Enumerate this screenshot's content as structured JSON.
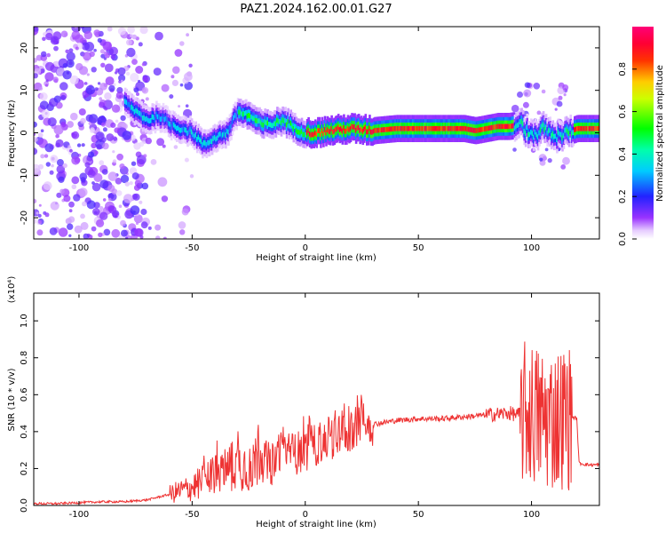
{
  "title": "PAZ1.2024.162.00.01.G27",
  "chart_data": [
    {
      "type": "heatmap",
      "xlabel": "Height of straight line (km)",
      "ylabel": "Frequency (Hz)",
      "xlim": [
        -120,
        130
      ],
      "ylim": [
        -25,
        25
      ],
      "xticks": [
        -100,
        -50,
        0,
        50,
        100
      ],
      "yticks": [
        -20,
        -10,
        0,
        10,
        20
      ],
      "colorbar": {
        "label": "Normalized spectral amplitude",
        "range": [
          0,
          1
        ],
        "ticks": [
          "0.0",
          "0.2",
          "0.4",
          "0.6",
          "0.8"
        ],
        "colormap": "purple-blue-cyan-green-yellow-red-pink"
      },
      "ridge": {
        "description": "dominant frequency ridge vs height",
        "x": [
          -120,
          -100,
          -90,
          -85,
          -80,
          -75,
          -70,
          -65,
          -60,
          -55,
          -50,
          -45,
          -40,
          -35,
          -30,
          -25,
          -20,
          -15,
          -10,
          -5,
          0,
          5,
          10,
          20,
          30,
          40,
          50,
          60,
          70,
          75,
          80,
          85,
          90,
          95,
          100,
          105,
          110,
          115,
          120,
          130
        ],
        "y": [
          5,
          8,
          10,
          9,
          7,
          5,
          3,
          4,
          2,
          1,
          0,
          -3,
          -1,
          0,
          5,
          4,
          2,
          2,
          3,
          1,
          0,
          0,
          0.5,
          1,
          0.5,
          1,
          1,
          1,
          1,
          0.5,
          1,
          1.5,
          1.5,
          2,
          -1,
          1,
          -1,
          0,
          1,
          1
        ]
      }
    },
    {
      "type": "line",
      "xlabel": "Height of straight line (km)",
      "ylabel": "SNR (10 * v/v)",
      "multiplier": "(x10⁴)",
      "xlim": [
        -120,
        130
      ],
      "ylim": [
        0,
        1.15
      ],
      "xticks": [
        -100,
        -50,
        0,
        50,
        100
      ],
      "yticks": [
        "0.0",
        "0.2",
        "0.4",
        "0.6",
        "0.8",
        "1.0"
      ],
      "color": "#ee3333",
      "series": [
        {
          "x": [
            -120,
            -110,
            -100,
            -90,
            -80,
            -70,
            -60,
            -50,
            -45,
            -40,
            -35,
            -30,
            -25,
            -20,
            -15,
            -10,
            -5,
            0,
            5,
            10,
            15,
            20,
            25,
            30,
            35,
            40,
            50,
            60,
            70,
            80,
            90,
            95,
            98,
            100,
            103,
            106,
            109,
            112,
            115,
            118,
            120,
            121,
            125,
            130
          ],
          "y": [
            0.01,
            0.01,
            0.015,
            0.02,
            0.02,
            0.03,
            0.06,
            0.1,
            0.13,
            0.17,
            0.2,
            0.22,
            0.22,
            0.25,
            0.22,
            0.3,
            0.28,
            0.3,
            0.33,
            0.36,
            0.38,
            0.41,
            0.43,
            0.44,
            0.45,
            0.46,
            0.47,
            0.47,
            0.48,
            0.49,
            0.5,
            0.49,
            0.5,
            0.5,
            0.48,
            0.47,
            0.47,
            0.48,
            0.48,
            0.48,
            0.47,
            0.23,
            0.22,
            0.22
          ]
        }
      ]
    }
  ]
}
